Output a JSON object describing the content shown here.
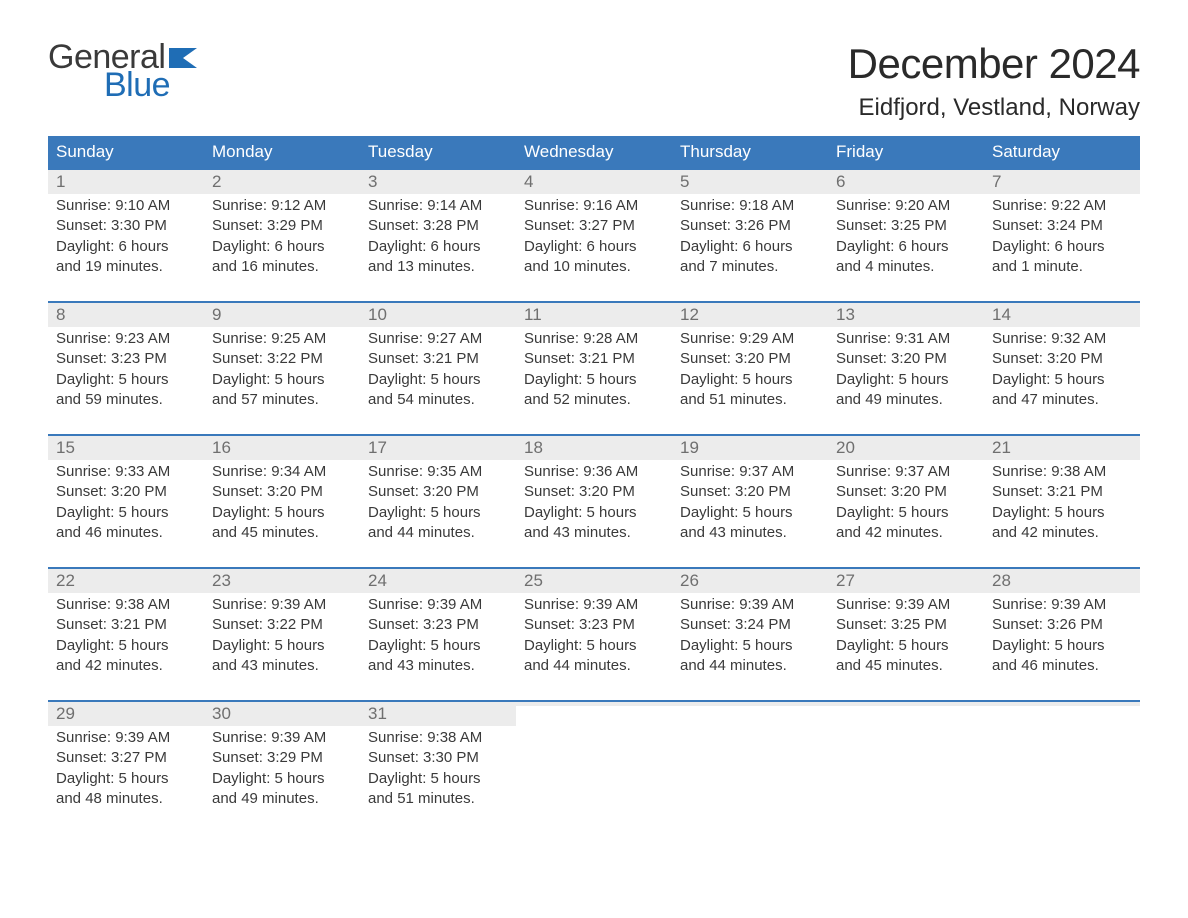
{
  "logo": {
    "text_general": "General",
    "text_blue": "Blue",
    "flag_color": "#1f6db5",
    "general_color": "#3a3a3a",
    "blue_color": "#1f6db5"
  },
  "title": {
    "month": "December 2024",
    "location": "Eidfjord, Vestland, Norway",
    "month_fontsize": 42,
    "location_fontsize": 24,
    "text_color": "#2a2a2a"
  },
  "calendar": {
    "header_bg": "#3a79bb",
    "header_text_color": "#ffffff",
    "daynum_bg": "#ececec",
    "daynum_color": "#6f6f6f",
    "body_text_color": "#3a3a3a",
    "week_border_color": "#3a79bb",
    "day_headers": [
      "Sunday",
      "Monday",
      "Tuesday",
      "Wednesday",
      "Thursday",
      "Friday",
      "Saturday"
    ],
    "columns": 7,
    "weeks": [
      [
        {
          "day": "1",
          "sunrise": "Sunrise: 9:10 AM",
          "sunset": "Sunset: 3:30 PM",
          "daylight1": "Daylight: 6 hours",
          "daylight2": "and 19 minutes."
        },
        {
          "day": "2",
          "sunrise": "Sunrise: 9:12 AM",
          "sunset": "Sunset: 3:29 PM",
          "daylight1": "Daylight: 6 hours",
          "daylight2": "and 16 minutes."
        },
        {
          "day": "3",
          "sunrise": "Sunrise: 9:14 AM",
          "sunset": "Sunset: 3:28 PM",
          "daylight1": "Daylight: 6 hours",
          "daylight2": "and 13 minutes."
        },
        {
          "day": "4",
          "sunrise": "Sunrise: 9:16 AM",
          "sunset": "Sunset: 3:27 PM",
          "daylight1": "Daylight: 6 hours",
          "daylight2": "and 10 minutes."
        },
        {
          "day": "5",
          "sunrise": "Sunrise: 9:18 AM",
          "sunset": "Sunset: 3:26 PM",
          "daylight1": "Daylight: 6 hours",
          "daylight2": "and 7 minutes."
        },
        {
          "day": "6",
          "sunrise": "Sunrise: 9:20 AM",
          "sunset": "Sunset: 3:25 PM",
          "daylight1": "Daylight: 6 hours",
          "daylight2": "and 4 minutes."
        },
        {
          "day": "7",
          "sunrise": "Sunrise: 9:22 AM",
          "sunset": "Sunset: 3:24 PM",
          "daylight1": "Daylight: 6 hours",
          "daylight2": "and 1 minute."
        }
      ],
      [
        {
          "day": "8",
          "sunrise": "Sunrise: 9:23 AM",
          "sunset": "Sunset: 3:23 PM",
          "daylight1": "Daylight: 5 hours",
          "daylight2": "and 59 minutes."
        },
        {
          "day": "9",
          "sunrise": "Sunrise: 9:25 AM",
          "sunset": "Sunset: 3:22 PM",
          "daylight1": "Daylight: 5 hours",
          "daylight2": "and 57 minutes."
        },
        {
          "day": "10",
          "sunrise": "Sunrise: 9:27 AM",
          "sunset": "Sunset: 3:21 PM",
          "daylight1": "Daylight: 5 hours",
          "daylight2": "and 54 minutes."
        },
        {
          "day": "11",
          "sunrise": "Sunrise: 9:28 AM",
          "sunset": "Sunset: 3:21 PM",
          "daylight1": "Daylight: 5 hours",
          "daylight2": "and 52 minutes."
        },
        {
          "day": "12",
          "sunrise": "Sunrise: 9:29 AM",
          "sunset": "Sunset: 3:20 PM",
          "daylight1": "Daylight: 5 hours",
          "daylight2": "and 51 minutes."
        },
        {
          "day": "13",
          "sunrise": "Sunrise: 9:31 AM",
          "sunset": "Sunset: 3:20 PM",
          "daylight1": "Daylight: 5 hours",
          "daylight2": "and 49 minutes."
        },
        {
          "day": "14",
          "sunrise": "Sunrise: 9:32 AM",
          "sunset": "Sunset: 3:20 PM",
          "daylight1": "Daylight: 5 hours",
          "daylight2": "and 47 minutes."
        }
      ],
      [
        {
          "day": "15",
          "sunrise": "Sunrise: 9:33 AM",
          "sunset": "Sunset: 3:20 PM",
          "daylight1": "Daylight: 5 hours",
          "daylight2": "and 46 minutes."
        },
        {
          "day": "16",
          "sunrise": "Sunrise: 9:34 AM",
          "sunset": "Sunset: 3:20 PM",
          "daylight1": "Daylight: 5 hours",
          "daylight2": "and 45 minutes."
        },
        {
          "day": "17",
          "sunrise": "Sunrise: 9:35 AM",
          "sunset": "Sunset: 3:20 PM",
          "daylight1": "Daylight: 5 hours",
          "daylight2": "and 44 minutes."
        },
        {
          "day": "18",
          "sunrise": "Sunrise: 9:36 AM",
          "sunset": "Sunset: 3:20 PM",
          "daylight1": "Daylight: 5 hours",
          "daylight2": "and 43 minutes."
        },
        {
          "day": "19",
          "sunrise": "Sunrise: 9:37 AM",
          "sunset": "Sunset: 3:20 PM",
          "daylight1": "Daylight: 5 hours",
          "daylight2": "and 43 minutes."
        },
        {
          "day": "20",
          "sunrise": "Sunrise: 9:37 AM",
          "sunset": "Sunset: 3:20 PM",
          "daylight1": "Daylight: 5 hours",
          "daylight2": "and 42 minutes."
        },
        {
          "day": "21",
          "sunrise": "Sunrise: 9:38 AM",
          "sunset": "Sunset: 3:21 PM",
          "daylight1": "Daylight: 5 hours",
          "daylight2": "and 42 minutes."
        }
      ],
      [
        {
          "day": "22",
          "sunrise": "Sunrise: 9:38 AM",
          "sunset": "Sunset: 3:21 PM",
          "daylight1": "Daylight: 5 hours",
          "daylight2": "and 42 minutes."
        },
        {
          "day": "23",
          "sunrise": "Sunrise: 9:39 AM",
          "sunset": "Sunset: 3:22 PM",
          "daylight1": "Daylight: 5 hours",
          "daylight2": "and 43 minutes."
        },
        {
          "day": "24",
          "sunrise": "Sunrise: 9:39 AM",
          "sunset": "Sunset: 3:23 PM",
          "daylight1": "Daylight: 5 hours",
          "daylight2": "and 43 minutes."
        },
        {
          "day": "25",
          "sunrise": "Sunrise: 9:39 AM",
          "sunset": "Sunset: 3:23 PM",
          "daylight1": "Daylight: 5 hours",
          "daylight2": "and 44 minutes."
        },
        {
          "day": "26",
          "sunrise": "Sunrise: 9:39 AM",
          "sunset": "Sunset: 3:24 PM",
          "daylight1": "Daylight: 5 hours",
          "daylight2": "and 44 minutes."
        },
        {
          "day": "27",
          "sunrise": "Sunrise: 9:39 AM",
          "sunset": "Sunset: 3:25 PM",
          "daylight1": "Daylight: 5 hours",
          "daylight2": "and 45 minutes."
        },
        {
          "day": "28",
          "sunrise": "Sunrise: 9:39 AM",
          "sunset": "Sunset: 3:26 PM",
          "daylight1": "Daylight: 5 hours",
          "daylight2": "and 46 minutes."
        }
      ],
      [
        {
          "day": "29",
          "sunrise": "Sunrise: 9:39 AM",
          "sunset": "Sunset: 3:27 PM",
          "daylight1": "Daylight: 5 hours",
          "daylight2": "and 48 minutes."
        },
        {
          "day": "30",
          "sunrise": "Sunrise: 9:39 AM",
          "sunset": "Sunset: 3:29 PM",
          "daylight1": "Daylight: 5 hours",
          "daylight2": "and 49 minutes."
        },
        {
          "day": "31",
          "sunrise": "Sunrise: 9:38 AM",
          "sunset": "Sunset: 3:30 PM",
          "daylight1": "Daylight: 5 hours",
          "daylight2": "and 51 minutes."
        },
        {
          "empty": true
        },
        {
          "empty": true
        },
        {
          "empty": true
        },
        {
          "empty": true
        }
      ]
    ]
  }
}
